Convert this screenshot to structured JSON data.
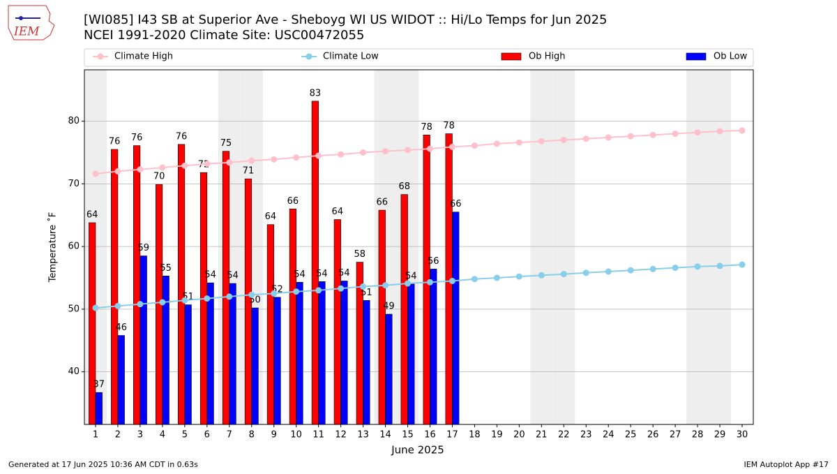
{
  "logo_text": "IEM",
  "chart_data": {
    "type": "bar",
    "title": "[WI085] I43 SB at Superior Ave - Sheboyg WI US WIDOT :: Hi/Lo Temps for Jun 2025",
    "subtitle": "NCEI 1991-2020 Climate Site: USC00472055",
    "x_label": "June 2025",
    "y_label": "Temperature ˚F",
    "footer_left": "Generated at 17 Jun 2025 10:36 AM CDT in 0.63s",
    "footer_right": "IEM Autoplot App #17",
    "x": [
      1,
      2,
      3,
      4,
      5,
      6,
      7,
      8,
      9,
      10,
      11,
      12,
      13,
      14,
      15,
      16,
      17,
      18,
      19,
      20,
      21,
      22,
      23,
      24,
      25,
      26,
      27,
      28,
      29,
      30
    ],
    "xlim": [
      0.5,
      30.5
    ],
    "xticks": [
      1,
      2,
      3,
      4,
      5,
      6,
      7,
      8,
      9,
      10,
      11,
      12,
      13,
      14,
      15,
      16,
      17,
      18,
      19,
      20,
      21,
      22,
      23,
      24,
      25,
      26,
      27,
      28,
      29,
      30
    ],
    "ylim": [
      31.6,
      88.2
    ],
    "yticks": [
      40,
      50,
      60,
      70,
      80
    ],
    "grid": true,
    "shaded_days": [
      1,
      7,
      8,
      14,
      15,
      21,
      22,
      28,
      29
    ],
    "series": [
      {
        "name": "Climate High",
        "type": "line",
        "color": "#ffc0cb",
        "values": [
          71.6,
          72.0,
          72.3,
          72.6,
          72.9,
          73.2,
          73.4,
          73.7,
          73.9,
          74.2,
          74.5,
          74.7,
          75.0,
          75.2,
          75.4,
          75.6,
          75.9,
          76.1,
          76.4,
          76.6,
          76.8,
          77.0,
          77.2,
          77.4,
          77.6,
          77.8,
          78.0,
          78.2,
          78.4,
          78.5
        ]
      },
      {
        "name": "Climate Low",
        "type": "line",
        "color": "#87ceeb",
        "values": [
          50.2,
          50.5,
          50.8,
          51.1,
          51.4,
          51.7,
          52.0,
          52.3,
          52.5,
          52.8,
          53.0,
          53.3,
          53.6,
          53.8,
          54.1,
          54.3,
          54.5,
          54.8,
          55.0,
          55.2,
          55.4,
          55.6,
          55.8,
          56.0,
          56.2,
          56.4,
          56.6,
          56.8,
          56.9,
          57.1
        ]
      },
      {
        "name": "Ob High",
        "type": "bar",
        "color": "#ff0000",
        "values": [
          63.8,
          75.5,
          76.1,
          69.9,
          76.3,
          71.8,
          75.2,
          70.8,
          63.5,
          66.0,
          83.2,
          64.3,
          57.5,
          65.8,
          68.3,
          77.8,
          78.0,
          null,
          null,
          null,
          null,
          null,
          null,
          null,
          null,
          null,
          null,
          null,
          null,
          null
        ],
        "value_labels": [
          "64",
          "76",
          "76",
          "70",
          "76",
          "72",
          "75",
          "71",
          "64",
          "66",
          "83",
          "64",
          "58",
          "66",
          "68",
          "78",
          "78",
          null,
          null,
          null,
          null,
          null,
          null,
          null,
          null,
          null,
          null,
          null,
          null,
          null
        ]
      },
      {
        "name": "Ob Low",
        "type": "bar",
        "color": "#0000ff",
        "values": [
          36.7,
          45.8,
          58.5,
          55.3,
          50.7,
          54.2,
          54.1,
          50.2,
          51.9,
          54.3,
          54.4,
          54.5,
          51.4,
          49.2,
          54.0,
          56.4,
          65.5,
          null,
          null,
          null,
          null,
          null,
          null,
          null,
          null,
          null,
          null,
          null,
          null,
          null
        ],
        "value_labels": [
          "37",
          "46",
          "59",
          "55",
          "51",
          "54",
          "54",
          "50",
          "52",
          "54",
          "54",
          "54",
          "51",
          "49",
          "54",
          "56",
          "66",
          null,
          null,
          null,
          null,
          null,
          null,
          null,
          null,
          null,
          null,
          null,
          null,
          null
        ]
      }
    ]
  }
}
